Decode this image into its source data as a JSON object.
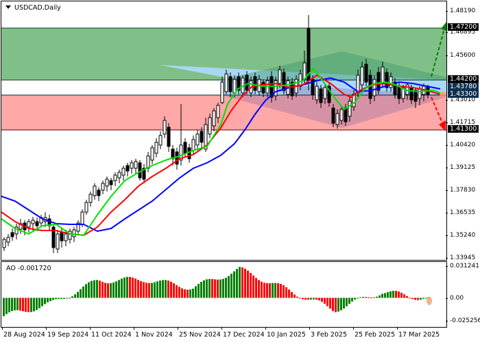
{
  "header": {
    "symbol_title": "USDCAD,Daily",
    "dropdown_icon": "triangle-down-icon"
  },
  "indicator": {
    "label": "AO -0.001720",
    "name": "AO",
    "value": "-0.001720"
  },
  "price_axis": {
    "ticks": [
      "1.48190",
      "1.46895",
      "1.45600",
      "1.43010",
      "1.41715",
      "1.40420",
      "1.39125",
      "1.37830",
      "1.36535",
      "1.35240",
      "1.33945"
    ],
    "labels": [
      {
        "value": "1.47200",
        "bg": "#000000"
      },
      {
        "value": "1.44200",
        "bg": "#000000"
      },
      {
        "value": "1.43780",
        "bg": "#0f2f4f"
      },
      {
        "value": "1.43300",
        "bg": "#0f2f4f"
      },
      {
        "value": "1.41300",
        "bg": "#000000"
      }
    ]
  },
  "ao_axis": {
    "ticks": [
      "0.031241",
      "0.00",
      "-0.025256"
    ]
  },
  "time_axis": {
    "ticks": [
      "28 Aug 2024",
      "19 Sep 2024",
      "11 Oct 2024",
      "1 Nov 2024",
      "25 Nov 2024",
      "17 Dec 2024",
      "10 Jan 2025",
      "3 Feb 2025",
      "25 Feb 2025",
      "17 Mar 2025"
    ]
  },
  "colors": {
    "resistance_zone": "#80c088",
    "support_zone": "#ffa8a8",
    "pivot_zone": "#aad8f8",
    "ma_fast": "#00e000",
    "ma_mid": "#ff0000",
    "ma_slow": "#0000ff",
    "ao_up": "#008000",
    "ao_down": "#ff0000",
    "bull_arrow": "#008000",
    "bear_arrow": "#ff0000"
  },
  "chart_data": [
    {
      "type": "candlestick",
      "title": "USDCAD,Daily",
      "ylim": [
        1.3364,
        1.486
      ],
      "x_range": [
        "2024-08-23",
        "2025-03-27"
      ],
      "yticks": [
        1.4819,
        1.46895,
        1.456,
        1.4301,
        1.41715,
        1.4042,
        1.39125,
        1.3783,
        1.36535,
        1.3524,
        1.33945
      ],
      "xticks": [
        "28 Aug 2024",
        "19 Sep 2024",
        "11 Oct 2024",
        "1 Nov 2024",
        "25 Nov 2024",
        "17 Dec 2024",
        "10 Jan 2025",
        "3 Feb 2025",
        "25 Feb 2025",
        "17 Mar 2025"
      ],
      "levels": [
        {
          "name": "resistance-2",
          "value": 1.472
        },
        {
          "name": "resistance-1",
          "value": 1.442
        },
        {
          "name": "pivot-upper",
          "value": 1.4378
        },
        {
          "name": "pivot-lower",
          "value": 1.433
        },
        {
          "name": "support-1",
          "value": 1.413
        }
      ],
      "zones": [
        {
          "name": "resistance-zone",
          "from": 1.442,
          "to": 1.472,
          "color": "#80c088"
        },
        {
          "name": "support-zone",
          "from": 1.413,
          "to": 1.433,
          "color": "#ffa8a8"
        }
      ],
      "moving_averages": [
        {
          "name": "fast",
          "color": "#00e000"
        },
        {
          "name": "medium",
          "color": "#ff0000"
        },
        {
          "name": "slow",
          "color": "#0000ff"
        }
      ],
      "approx_close_path": [
        {
          "date": "28 Aug 2024",
          "close": 1.35
        },
        {
          "date": "19 Sep 2024",
          "close": 1.358
        },
        {
          "date": "11 Oct 2024",
          "close": 1.376
        },
        {
          "date": "1 Nov 2024",
          "close": 1.394
        },
        {
          "date": "25 Nov 2024",
          "close": 1.4
        },
        {
          "date": "17 Dec 2024",
          "close": 1.436
        },
        {
          "date": "10 Jan 2025",
          "close": 1.438
        },
        {
          "date": "3 Feb 2025",
          "close": 1.435
        },
        {
          "date": "25 Feb 2025",
          "close": 1.428
        },
        {
          "date": "17 Mar 2025",
          "close": 1.434
        }
      ],
      "annotations": [
        "bullish dashed arrow toward 1.47200",
        "bearish dashed arrow toward 1.41300"
      ]
    },
    {
      "type": "bar",
      "title": "AO -0.001720",
      "ylim": [
        -0.025256,
        0.031241
      ],
      "yticks": [
        0.031241,
        0.0,
        -0.025256
      ],
      "last_value": -0.00172,
      "approx_values": [
        {
          "date": "28 Aug 2024",
          "value": -0.018
        },
        {
          "date": "19 Sep 2024",
          "value": -0.006
        },
        {
          "date": "11 Oct 2024",
          "value": 0.017
        },
        {
          "date": "1 Nov 2024",
          "value": 0.018
        },
        {
          "date": "25 Nov 2024",
          "value": 0.01
        },
        {
          "date": "17 Dec 2024",
          "value": 0.028
        },
        {
          "date": "10 Jan 2025",
          "value": 0.008
        },
        {
          "date": "3 Feb 2025",
          "value": -0.012
        },
        {
          "date": "25 Feb 2025",
          "value": 0.006
        },
        {
          "date": "17 Mar 2025",
          "value": -0.001
        }
      ]
    }
  ]
}
